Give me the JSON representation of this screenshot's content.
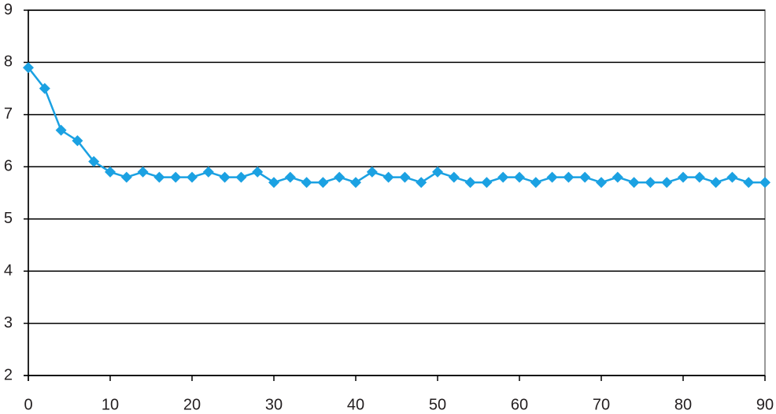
{
  "chart_data": {
    "type": "line",
    "x": [
      0,
      2,
      4,
      6,
      8,
      10,
      12,
      14,
      16,
      18,
      20,
      22,
      24,
      26,
      28,
      30,
      32,
      34,
      36,
      38,
      40,
      42,
      44,
      46,
      48,
      50,
      52,
      54,
      56,
      58,
      60,
      62,
      64,
      66,
      68,
      70,
      72,
      74,
      76,
      78,
      80,
      82,
      84,
      86,
      88,
      90
    ],
    "series": [
      {
        "color": "#1ba1e2",
        "values": [
          7.9,
          7.5,
          6.7,
          6.5,
          6.1,
          5.9,
          5.8,
          5.9,
          5.8,
          5.8,
          5.8,
          5.9,
          5.8,
          5.8,
          5.9,
          5.7,
          5.8,
          5.7,
          5.7,
          5.8,
          5.7,
          5.9,
          5.8,
          5.8,
          5.7,
          5.9,
          5.8,
          5.7,
          5.7,
          5.8,
          5.8,
          5.7,
          5.8,
          5.8,
          5.8,
          5.7,
          5.8,
          5.7,
          5.7,
          5.7,
          5.8,
          5.8,
          5.7,
          5.8,
          5.7,
          5.7
        ]
      }
    ],
    "xlim": [
      0,
      90
    ],
    "xticks": [
      0,
      10,
      20,
      30,
      40,
      50,
      60,
      70,
      80,
      90
    ],
    "ylim": [
      2,
      9
    ],
    "yticks": [
      2,
      3,
      4,
      5,
      6,
      7,
      8,
      9
    ],
    "grid": true
  }
}
